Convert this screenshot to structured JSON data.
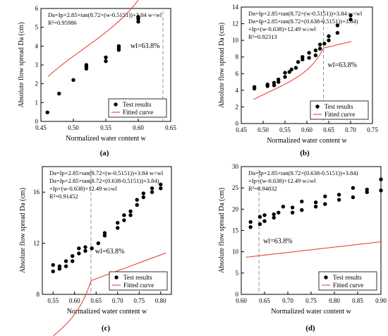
{
  "chart_data": [
    {
      "type": "scatter",
      "panel_label": "(a)",
      "xlabel": "Normalized water content w",
      "ylabel": "Absolute flow spread Da (cm)",
      "xlim": [
        0.45,
        0.65
      ],
      "ylim": [
        0,
        6
      ],
      "xticks": [
        "0.45",
        "0.50",
        "0.55",
        "0.60",
        "0.65"
      ],
      "yticks": [
        "0",
        "1",
        "2",
        "3",
        "4",
        "5",
        "6"
      ],
      "equations": [
        "Da=Ip×2.85×tan(8.72×(w-0.5151))+3.84 w<wl",
        "R²=0.95986"
      ],
      "wl_label": "wl=63.8%",
      "wl_x": 0.638,
      "legend": {
        "points": "Test results",
        "curve": "Fitted curve",
        "position": "bottom-right"
      },
      "series": [
        {
          "name": "Test results",
          "points": [
            [
              0.46,
              0.48
            ],
            [
              0.478,
              1.48
            ],
            [
              0.5,
              2.2
            ],
            [
              0.52,
              2.8
            ],
            [
              0.52,
              2.9
            ],
            [
              0.52,
              3.0
            ],
            [
              0.55,
              3.2
            ],
            [
              0.55,
              3.4
            ],
            [
              0.57,
              3.8
            ],
            [
              0.57,
              3.9
            ],
            [
              0.57,
              4.0
            ],
            [
              0.6,
              5.3
            ],
            [
              0.6,
              5.45
            ],
            [
              0.6,
              5.55
            ]
          ]
        }
      ],
      "curve": {
        "type": "tan",
        "x_range": [
          0.461,
          0.6
        ]
      }
    },
    {
      "type": "scatter",
      "panel_label": "(b)",
      "xlabel": "Normalized water content w",
      "ylabel": "Absolute flow spread Da (cm)",
      "xlim": [
        0.45,
        0.75
      ],
      "ylim": [
        0,
        14
      ],
      "xticks": [
        "0.45",
        "0.50",
        "0.55",
        "0.60",
        "0.65",
        "0.70",
        "0.75"
      ],
      "yticks": [
        "0",
        "2",
        "4",
        "6",
        "8",
        "10",
        "12",
        "14"
      ],
      "equations": [
        "Da=Ip×2.85×tan(8.72×(w-0.5151))+3.84 w<wl",
        "Da=Ip×2.85×tan(8.72×(0.638-0.5151))+3.84)",
        "+Ip×(w-0.638)×12.49 w≥wl",
        "R²=0.92313"
      ],
      "wl_label": "wl=63.8%",
      "wl_x": 0.638,
      "legend": {
        "points": "Test results",
        "curve": "Fitted curve",
        "position": "bottom-right"
      },
      "series": [
        {
          "name": "Test results",
          "points": [
            [
              0.48,
              4.2
            ],
            [
              0.48,
              4.4
            ],
            [
              0.51,
              4.5
            ],
            [
              0.51,
              4.7
            ],
            [
              0.525,
              4.6
            ],
            [
              0.525,
              4.9
            ],
            [
              0.535,
              5.0
            ],
            [
              0.535,
              5.3
            ],
            [
              0.55,
              5.6
            ],
            [
              0.55,
              6.1
            ],
            [
              0.56,
              6.2
            ],
            [
              0.565,
              6.5
            ],
            [
              0.575,
              6.7
            ],
            [
              0.58,
              7.4
            ],
            [
              0.59,
              7.7
            ],
            [
              0.59,
              8.0
            ],
            [
              0.605,
              7.9
            ],
            [
              0.605,
              8.5
            ],
            [
              0.62,
              8.2
            ],
            [
              0.62,
              8.8
            ],
            [
              0.63,
              9.0
            ],
            [
              0.63,
              9.5
            ],
            [
              0.64,
              9.6
            ],
            [
              0.65,
              10.0
            ],
            [
              0.65,
              10.5
            ],
            [
              0.67,
              10.9
            ],
            [
              0.67,
              11.8
            ],
            [
              0.7,
              12.5
            ],
            [
              0.7,
              13.0
            ]
          ]
        }
      ],
      "curve": {
        "type": "piecewise",
        "x_range": [
          0.478,
          0.702
        ]
      }
    },
    {
      "type": "scatter",
      "panel_label": "(c)",
      "xlabel": "Normalized water content w",
      "ylabel": "Absolute flow spread Da (cm)",
      "xlim": [
        0.525,
        0.825
      ],
      "ylim": [
        8,
        18
      ],
      "xticks": [
        "0.55",
        "0.60",
        "0.65",
        "0.70",
        "0.75",
        "0.80"
      ],
      "yticks": [
        "8",
        "12",
        "16"
      ],
      "equations": [
        "Da=Ip×2.85×tan(8.72×(w-0.5151))+3.84 w<wl",
        "Da=Ip×2.85×tan(8.72×(0.638-0.5151))+3.84)",
        "+Ip×(w-0.638)×12.49 w≥wl",
        "R²=0.91452"
      ],
      "wl_label": "wl=63.8%",
      "wl_x": 0.638,
      "legend": {
        "points": "Test results",
        "curve": "Fitted curve",
        "position": "bottom-right"
      },
      "series": [
        {
          "name": "Test results",
          "points": [
            [
              0.55,
              9.8
            ],
            [
              0.55,
              10.3
            ],
            [
              0.565,
              10.0
            ],
            [
              0.565,
              10.2
            ],
            [
              0.58,
              10.2
            ],
            [
              0.58,
              10.6
            ],
            [
              0.595,
              10.6
            ],
            [
              0.595,
              11.0
            ],
            [
              0.61,
              11.2
            ],
            [
              0.61,
              11.6
            ],
            [
              0.625,
              11.4
            ],
            [
              0.625,
              11.7
            ],
            [
              0.64,
              11.6
            ],
            [
              0.655,
              12.0
            ],
            [
              0.67,
              12.6
            ],
            [
              0.67,
              12.8
            ],
            [
              0.7,
              13.2
            ],
            [
              0.7,
              13.6
            ],
            [
              0.715,
              13.8
            ],
            [
              0.715,
              14.2
            ],
            [
              0.73,
              14.2
            ],
            [
              0.73,
              14.5
            ],
            [
              0.745,
              15.0
            ],
            [
              0.745,
              15.4
            ],
            [
              0.76,
              15.6
            ],
            [
              0.76,
              15.9
            ],
            [
              0.78,
              16.0
            ],
            [
              0.78,
              16.3
            ],
            [
              0.8,
              16.3
            ],
            [
              0.8,
              16.6
            ]
          ]
        }
      ],
      "curve": {
        "type": "piecewise",
        "x_range": [
          0.55,
          0.812
        ]
      }
    },
    {
      "type": "scatter",
      "panel_label": "(d)",
      "xlabel": "Normalized water content w",
      "ylabel": "Absolute flow spread Da (cm)",
      "xlim": [
        0.6,
        0.9
      ],
      "ylim": [
        0,
        30
      ],
      "xticks": [
        "0.60",
        "0.65",
        "0.70",
        "0.75",
        "0.80",
        "0.85",
        "0.90"
      ],
      "yticks": [
        "0",
        "5",
        "10",
        "15",
        "20",
        "25",
        "30"
      ],
      "equations": [
        "Da=Ip×2.85×tan(8.72×(0.638-0.5151))+3.84)",
        "+Ip×(w-0.638)×12.49 w≥wl",
        "R²=0.94832"
      ],
      "wl_label": "wl=63.8%",
      "wl_x": 0.638,
      "legend": {
        "points": "Test results",
        "curve": "Fitted curve",
        "position": "bottom-right"
      },
      "series": [
        {
          "name": "Test results",
          "points": [
            [
              0.62,
              15.8
            ],
            [
              0.62,
              17.0
            ],
            [
              0.64,
              16.5
            ],
            [
              0.64,
              18.2
            ],
            [
              0.65,
              17.2
            ],
            [
              0.65,
              18.6
            ],
            [
              0.67,
              18.0
            ],
            [
              0.67,
              18.8
            ],
            [
              0.68,
              19.2
            ],
            [
              0.69,
              20.6
            ],
            [
              0.71,
              19.2
            ],
            [
              0.71,
              20.4
            ],
            [
              0.73,
              19.8
            ],
            [
              0.73,
              21.8
            ],
            [
              0.76,
              20.6
            ],
            [
              0.76,
              21.6
            ],
            [
              0.78,
              21.2
            ],
            [
              0.78,
              23.0
            ],
            [
              0.81,
              22.2
            ],
            [
              0.81,
              23.4
            ],
            [
              0.84,
              22.8
            ],
            [
              0.84,
              25.0
            ],
            [
              0.87,
              24.0
            ],
            [
              0.87,
              24.6
            ],
            [
              0.9,
              24.4
            ],
            [
              0.9,
              27.0
            ]
          ]
        }
      ],
      "curve": {
        "type": "linear",
        "x_range": [
          0.61,
          0.9
        ]
      }
    }
  ]
}
